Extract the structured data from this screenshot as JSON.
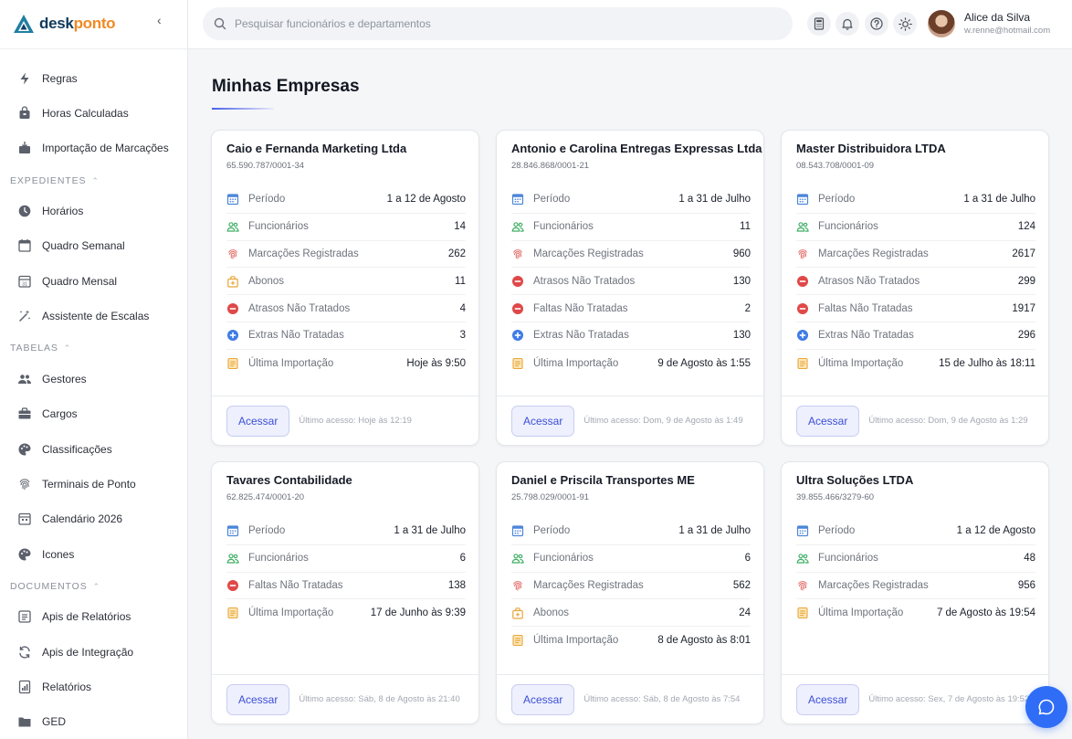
{
  "brand": {
    "part1": "desk",
    "part2": "ponto"
  },
  "sidebar": {
    "items_top": [
      {
        "label": "Regras",
        "icon": "bolt-icon"
      },
      {
        "label": "Horas Calculadas",
        "icon": "bag-icon"
      },
      {
        "label": "Importação de Marcações",
        "icon": "import-icon"
      }
    ],
    "section_expedientes": "EXPEDIENTES",
    "items_expedientes": [
      {
        "label": "Horários",
        "icon": "clock-icon"
      },
      {
        "label": "Quadro Semanal",
        "icon": "calendar-week-icon"
      },
      {
        "label": "Quadro Mensal",
        "icon": "calendar-month-icon"
      },
      {
        "label": "Assistente de Escalas",
        "icon": "magic-icon"
      }
    ],
    "section_tabelas": "TABELAS",
    "items_tabelas": [
      {
        "label": "Gestores",
        "icon": "users-icon"
      },
      {
        "label": "Cargos",
        "icon": "briefcase-icon"
      },
      {
        "label": "Classificações",
        "icon": "palette-icon"
      },
      {
        "label": "Terminais de Ponto",
        "icon": "fingerprint-icon"
      },
      {
        "label": "Calendário 2026",
        "icon": "calendar-icon"
      },
      {
        "label": "Icones",
        "icon": "palette-icon"
      }
    ],
    "section_documentos": "DOCUMENTOS",
    "items_documentos": [
      {
        "label": "Apis de Relatórios",
        "icon": "api-icon"
      },
      {
        "label": "Apis de Integração",
        "icon": "sync-icon"
      },
      {
        "label": "Relatórios",
        "icon": "report-icon"
      },
      {
        "label": "GED",
        "icon": "folder-icon"
      }
    ]
  },
  "topbar": {
    "search_placeholder": "Pesquisar funcionários e departamentos",
    "user_name": "Alice da Silva",
    "user_email": "w.renne@hotmail.com"
  },
  "page": {
    "title": "Minhas Empresas"
  },
  "common": {
    "button_label": "Acessar"
  },
  "cards": [
    {
      "name": "Caio e Fernanda Marketing Ltda",
      "cnpj": "65.590.787/0001-34",
      "rows": [
        {
          "kind": "periodo",
          "label": "Período",
          "value": "1 a 12 de Agosto"
        },
        {
          "kind": "func",
          "label": "Funcionários",
          "value": "14"
        },
        {
          "kind": "marc",
          "label": "Marcações Registradas",
          "value": "262"
        },
        {
          "kind": "abono",
          "label": "Abonos",
          "value": "11"
        },
        {
          "kind": "minus",
          "label": "Atrasos Não Tratados",
          "value": "4"
        },
        {
          "kind": "plus",
          "label": "Extras Não Tratadas",
          "value": "3"
        },
        {
          "kind": "import",
          "label": "Última Importação",
          "value": "Hoje às 9:50"
        }
      ],
      "last_access": "Último acesso: Hoje às 12:19"
    },
    {
      "name": "Antonio e Carolina Entregas Expressas Ltda",
      "cnpj": "28.846.868/0001-21",
      "rows": [
        {
          "kind": "periodo",
          "label": "Período",
          "value": "1 a 31 de Julho"
        },
        {
          "kind": "func",
          "label": "Funcionários",
          "value": "11"
        },
        {
          "kind": "marc",
          "label": "Marcações Registradas",
          "value": "960"
        },
        {
          "kind": "minus",
          "label": "Atrasos Não Tratados",
          "value": "130"
        },
        {
          "kind": "minus",
          "label": "Faltas Não Tratadas",
          "value": "2"
        },
        {
          "kind": "plus",
          "label": "Extras Não Tratadas",
          "value": "130"
        },
        {
          "kind": "import",
          "label": "Última Importação",
          "value": "9 de Agosto às 1:55"
        }
      ],
      "last_access": "Último acesso: Dom, 9 de Agosto às 1:49"
    },
    {
      "name": "Master Distribuidora LTDA",
      "cnpj": "08.543.708/0001-09",
      "rows": [
        {
          "kind": "periodo",
          "label": "Período",
          "value": "1 a 31 de Julho"
        },
        {
          "kind": "func",
          "label": "Funcionários",
          "value": "124"
        },
        {
          "kind": "marc",
          "label": "Marcações Registradas",
          "value": "2617"
        },
        {
          "kind": "minus",
          "label": "Atrasos Não Tratados",
          "value": "299"
        },
        {
          "kind": "minus",
          "label": "Faltas Não Tratadas",
          "value": "1917"
        },
        {
          "kind": "plus",
          "label": "Extras Não Tratadas",
          "value": "296"
        },
        {
          "kind": "import",
          "label": "Última Importação",
          "value": "15 de Julho às 18:11"
        }
      ],
      "last_access": "Último acesso: Dom, 9 de Agosto às 1:29"
    },
    {
      "name": "Tavares Contabilidade",
      "cnpj": "62.825.474/0001-20",
      "rows": [
        {
          "kind": "periodo",
          "label": "Período",
          "value": "1 a 31 de Julho"
        },
        {
          "kind": "func",
          "label": "Funcionários",
          "value": "6"
        },
        {
          "kind": "minus",
          "label": "Faltas Não Tratadas",
          "value": "138"
        },
        {
          "kind": "import",
          "label": "Última Importação",
          "value": "17 de Junho às 9:39"
        }
      ],
      "last_access": "Último acesso: Sáb, 8 de Agosto às 21:40"
    },
    {
      "name": "Daniel e Priscila Transportes ME",
      "cnpj": "25.798.029/0001-91",
      "rows": [
        {
          "kind": "periodo",
          "label": "Período",
          "value": "1 a 31 de Julho"
        },
        {
          "kind": "func",
          "label": "Funcionários",
          "value": "6"
        },
        {
          "kind": "marc",
          "label": "Marcações Registradas",
          "value": "562"
        },
        {
          "kind": "abono",
          "label": "Abonos",
          "value": "24"
        },
        {
          "kind": "import",
          "label": "Última Importação",
          "value": "8 de Agosto às 8:01"
        }
      ],
      "last_access": "Último acesso: Sáb, 8 de Agosto às 7:54"
    },
    {
      "name": "Ultra Soluções LTDA",
      "cnpj": "39.855.466/3279-60",
      "rows": [
        {
          "kind": "periodo",
          "label": "Período",
          "value": "1 a 12 de Agosto"
        },
        {
          "kind": "func",
          "label": "Funcionários",
          "value": "48"
        },
        {
          "kind": "marc",
          "label": "Marcações Registradas",
          "value": "956"
        },
        {
          "kind": "import",
          "label": "Última Importação",
          "value": "7 de Agosto às 19:54"
        }
      ],
      "last_access": "Último acesso: Sex, 7 de Agosto às 19:52"
    }
  ]
}
